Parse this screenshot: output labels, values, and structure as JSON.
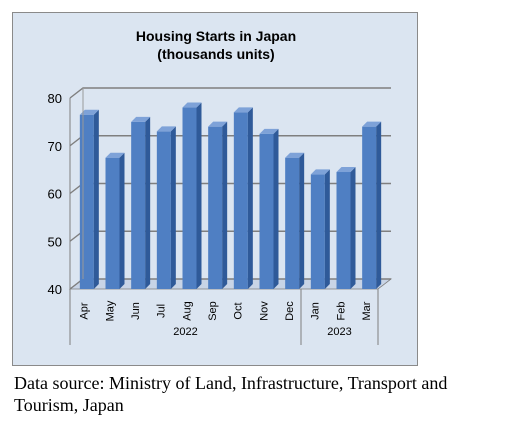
{
  "chart_data": {
    "type": "bar",
    "title": "Housing Starts in Japan",
    "subtitle": "(thousands units)",
    "categories": [
      "Apr",
      "May",
      "Jun",
      "Jul",
      "Aug",
      "Sep",
      "Oct",
      "Nov",
      "Dec",
      "Jan",
      "Feb",
      "Mar"
    ],
    "groups": [
      {
        "label": "2022",
        "categories": [
          "Apr",
          "May",
          "Jun",
          "Jul",
          "Aug",
          "Sep",
          "Oct",
          "Nov",
          "Dec"
        ]
      },
      {
        "label": "2023",
        "categories": [
          "Jan",
          "Feb",
          "Mar"
        ]
      }
    ],
    "values": [
      76.5,
      67.5,
      75.0,
      73.0,
      78.0,
      74.0,
      77.0,
      72.5,
      67.5,
      64.0,
      64.5,
      74.0
    ],
    "ylim": [
      40,
      80
    ],
    "yticks": [
      40,
      50,
      60,
      70,
      80
    ],
    "grid": true,
    "xlabel": "",
    "ylabel": "",
    "colors": {
      "bar": "#4f7fc3",
      "bar_side": "#2f5a99",
      "bar_top": "#7ea2d8",
      "grid": "#7f7f7f",
      "wall": "#dbe5f1"
    }
  },
  "caption": "Data source: Ministry of Land, Infrastructure, Transport and Tourism, Japan"
}
